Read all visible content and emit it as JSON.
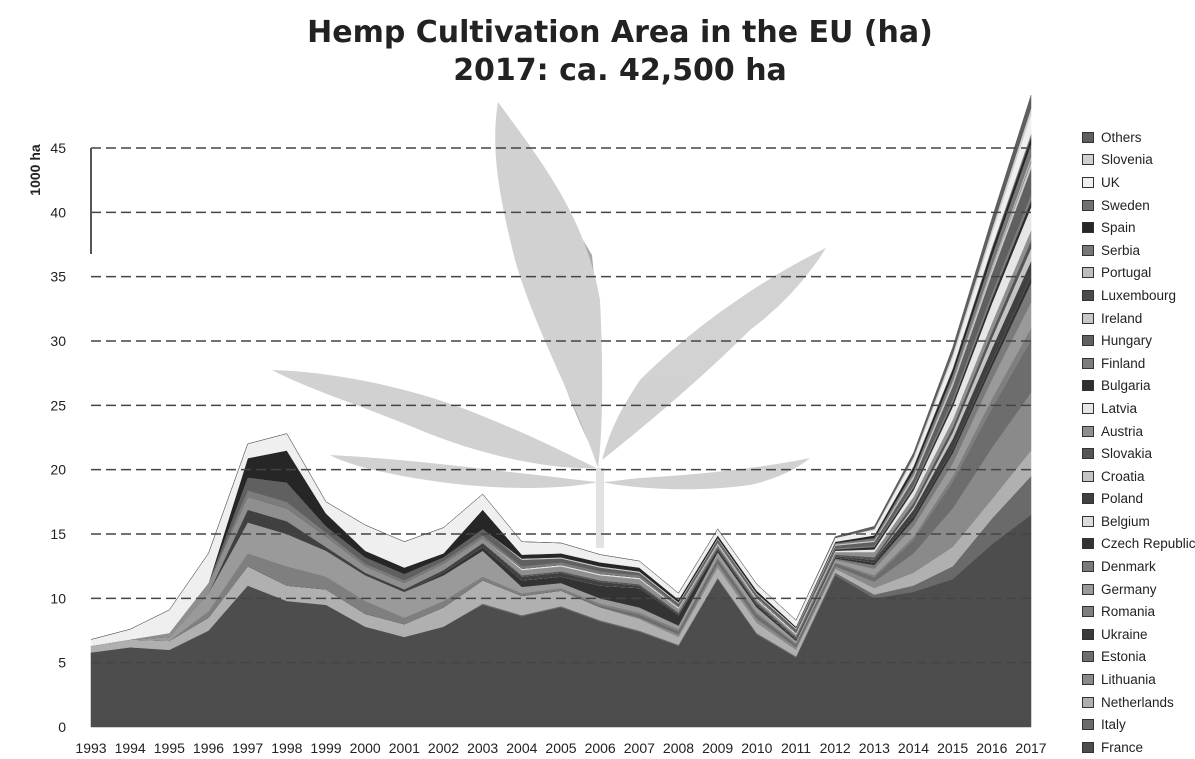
{
  "chart_data": {
    "type": "area",
    "title": "Hemp Cultivation Area in the EU (ha)",
    "subtitle": "2017: ca. 42,500 ha",
    "ylabel": "1000 ha",
    "xlabel": "",
    "ylim": [
      0,
      45
    ],
    "yticks": [
      0,
      5,
      10,
      15,
      20,
      25,
      30,
      35,
      40,
      45
    ],
    "grid": true,
    "legend_position": "right",
    "x": [
      1993,
      1994,
      1995,
      1996,
      1997,
      1998,
      1999,
      2000,
      2001,
      2002,
      2003,
      2004,
      2005,
      2006,
      2007,
      2008,
      2009,
      2010,
      2011,
      2012,
      2013,
      2014,
      2015,
      2016,
      2017
    ],
    "series": [
      {
        "name": "France",
        "color": "#4d4d4d",
        "values": [
          5.8,
          6.2,
          6.0,
          7.5,
          11.0,
          9.8,
          9.5,
          7.8,
          7.0,
          7.8,
          9.5,
          8.6,
          9.3,
          8.2,
          7.4,
          6.3,
          11.5,
          7.2,
          5.4,
          11.8,
          10.0,
          10.5,
          11.5,
          14.2,
          16.5
        ]
      },
      {
        "name": "Italy",
        "color": "#6a6a6a",
        "values": [
          0,
          0,
          0,
          0,
          0,
          0,
          0,
          0,
          0,
          0,
          0.1,
          0.1,
          0.1,
          0.1,
          0.1,
          0.1,
          0.1,
          0.1,
          0.1,
          0.2,
          0.3,
          0.5,
          1.0,
          2.0,
          3.0
        ]
      },
      {
        "name": "Netherlands",
        "color": "#b0b0b0",
        "values": [
          0.5,
          0.6,
          0.7,
          1.0,
          1.5,
          1.2,
          1.2,
          1.0,
          1.0,
          1.5,
          1.8,
          1.5,
          1.2,
          1.0,
          0.9,
          0.6,
          0.8,
          0.8,
          0.5,
          0.3,
          0.5,
          1.0,
          1.5,
          1.5,
          2.0
        ]
      },
      {
        "name": "Lithuania",
        "color": "#8a8a8a",
        "values": [
          0,
          0,
          0,
          0,
          0,
          0,
          0,
          0,
          0,
          0,
          0,
          0,
          0,
          0,
          0.1,
          0.2,
          0.3,
          0.3,
          0.2,
          0.2,
          0.5,
          1.5,
          3.0,
          4.0,
          4.5
        ]
      },
      {
        "name": "Estonia",
        "color": "#6d6d6d",
        "values": [
          0,
          0,
          0,
          0,
          0,
          0,
          0,
          0,
          0,
          0,
          0,
          0,
          0,
          0.1,
          0.2,
          0.2,
          0.3,
          0.3,
          0.2,
          0.2,
          0.3,
          1.0,
          2.0,
          3.0,
          4.0
        ]
      },
      {
        "name": "Ukraine",
        "color": "#3a3a3a",
        "values": [
          0,
          0,
          0,
          0,
          0,
          0,
          0,
          0,
          0,
          0,
          0,
          0,
          0,
          0,
          0,
          0,
          0,
          0,
          0,
          0,
          0,
          0,
          0,
          0,
          0
        ]
      },
      {
        "name": "Romania",
        "color": "#7f7f7f",
        "values": [
          0,
          0,
          0,
          0.5,
          1.0,
          1.5,
          1.0,
          1.0,
          0.5,
          0.5,
          0.3,
          0.2,
          0.2,
          0.2,
          0.2,
          0.2,
          0.2,
          0.2,
          0.1,
          0.1,
          0.2,
          0.3,
          0.5,
          0.8,
          1.0
        ]
      },
      {
        "name": "Germany",
        "color": "#9a9a9a",
        "values": [
          0,
          0,
          0.3,
          1.4,
          2.4,
          2.5,
          2.0,
          2.0,
          2.0,
          2.0,
          2.0,
          0.5,
          0.4,
          0.4,
          0.4,
          0.3,
          0.4,
          0.4,
          0.2,
          0.2,
          0.5,
          0.8,
          1.0,
          1.5,
          2.0
        ]
      },
      {
        "name": "Denmark",
        "color": "#7a7a7a",
        "values": [
          0,
          0,
          0,
          0,
          0,
          0,
          0,
          0,
          0,
          0,
          0,
          0,
          0,
          0,
          0,
          0,
          0,
          0,
          0,
          0.1,
          0.3,
          0.5,
          0.8,
          1.0,
          1.5
        ]
      },
      {
        "name": "Czech Republic",
        "color": "#333333",
        "values": [
          0,
          0,
          0,
          0,
          0,
          0,
          0,
          0,
          0,
          0.2,
          0.3,
          0.5,
          0.5,
          1.0,
          1.5,
          0.8,
          0.2,
          0.2,
          0.1,
          0.1,
          0.2,
          0.3,
          0.3,
          0.4,
          0.5
        ]
      },
      {
        "name": "Belgium",
        "color": "#dcdcdc",
        "values": [
          0,
          0,
          0,
          0,
          0,
          0,
          0,
          0,
          0,
          0,
          0,
          0,
          0,
          0,
          0,
          0,
          0,
          0,
          0,
          0,
          0,
          0,
          0,
          0,
          0
        ]
      },
      {
        "name": "Poland",
        "color": "#404040",
        "values": [
          0,
          0,
          0,
          0,
          1.0,
          1.0,
          0.3,
          0.2,
          0.2,
          0.2,
          0.3,
          0.3,
          0.3,
          0.3,
          0.2,
          0.1,
          0.1,
          0.1,
          0.1,
          0.1,
          0.2,
          0.5,
          0.8,
          1.0,
          1.2
        ]
      },
      {
        "name": "Croatia",
        "color": "#c4c4c4",
        "values": [
          0,
          0,
          0,
          0,
          0,
          0,
          0,
          0,
          0,
          0,
          0,
          0,
          0,
          0,
          0,
          0,
          0,
          0,
          0,
          0,
          0,
          0.2,
          0.5,
          0.8,
          1.0
        ]
      },
      {
        "name": "Slovakia",
        "color": "#555555",
        "values": [
          0,
          0,
          0,
          0,
          0,
          0,
          0,
          0,
          0,
          0,
          0,
          0.1,
          0.1,
          0.1,
          0.1,
          0.1,
          0.1,
          0.1,
          0.1,
          0.1,
          0.2,
          0.3,
          0.4,
          0.5,
          0.6
        ]
      },
      {
        "name": "Austria",
        "color": "#8f8f8f",
        "values": [
          0,
          0,
          0.3,
          0.8,
          1.0,
          1.0,
          0.8,
          0.5,
          0.5,
          0.5,
          0.4,
          0.4,
          0.4,
          0.4,
          0.4,
          0.3,
          0.2,
          0.2,
          0.2,
          0.2,
          0.4,
          0.5,
          0.6,
          0.7,
          0.8
        ]
      },
      {
        "name": "Latvia",
        "color": "#e6e6e6",
        "values": [
          0,
          0,
          0,
          0,
          0,
          0,
          0,
          0,
          0,
          0,
          0,
          0.1,
          0.1,
          0.1,
          0.1,
          0.1,
          0.1,
          0.1,
          0.1,
          0.1,
          0.2,
          0.5,
          1.0,
          1.5,
          1.8
        ]
      },
      {
        "name": "Bulgaria",
        "color": "#2e2e2e",
        "values": [
          0,
          0,
          0,
          0,
          0,
          0,
          0,
          0,
          0,
          0,
          0,
          0,
          0,
          0,
          0,
          0,
          0,
          0,
          0,
          0.1,
          0.2,
          0.2,
          0.3,
          0.4,
          0.5
        ]
      },
      {
        "name": "Finland",
        "color": "#7c7c7c",
        "values": [
          0,
          0,
          0,
          0,
          0.5,
          0.5,
          0.3,
          0.2,
          0.2,
          0.2,
          0.2,
          0.2,
          0.2,
          0.2,
          0.2,
          0.1,
          0.1,
          0.1,
          0.1,
          0.1,
          0.1,
          0.2,
          0.3,
          0.4,
          0.5
        ]
      },
      {
        "name": "Hungary",
        "color": "#606060",
        "values": [
          0,
          0,
          0,
          0,
          1.0,
          1.5,
          0.5,
          0.5,
          0.5,
          0.3,
          0.5,
          0.5,
          0.3,
          0.3,
          0.2,
          0.2,
          0.2,
          0.2,
          0.2,
          0.2,
          0.3,
          0.5,
          1.0,
          1.5,
          2.0
        ]
      },
      {
        "name": "Ireland",
        "color": "#c8c8c8",
        "values": [
          0,
          0,
          0,
          0,
          0,
          0,
          0,
          0,
          0,
          0,
          0,
          0.1,
          0.1,
          0.1,
          0.1,
          0.1,
          0.1,
          0.1,
          0.1,
          0.1,
          0.1,
          0.2,
          0.3,
          0.4,
          0.5
        ]
      },
      {
        "name": "Luxembourg",
        "color": "#4a4a4a",
        "values": [
          0,
          0,
          0,
          0,
          0,
          0,
          0,
          0,
          0,
          0,
          0,
          0,
          0,
          0,
          0,
          0,
          0,
          0,
          0,
          0,
          0,
          0,
          0,
          0,
          0.1
        ]
      },
      {
        "name": "Portugal",
        "color": "#bdbdbd",
        "values": [
          0,
          0,
          0,
          0,
          0,
          0,
          0,
          0,
          0,
          0,
          0,
          0,
          0,
          0,
          0,
          0,
          0,
          0,
          0,
          0,
          0,
          0.1,
          0.1,
          0.2,
          0.3
        ]
      },
      {
        "name": "Serbia",
        "color": "#787878",
        "values": [
          0,
          0,
          0,
          0,
          0,
          0,
          0,
          0,
          0,
          0,
          0,
          0,
          0,
          0,
          0,
          0,
          0,
          0,
          0,
          0.1,
          0.2,
          0.3,
          0.5,
          0.8,
          1.0
        ]
      },
      {
        "name": "Spain",
        "color": "#262626",
        "values": [
          0,
          0,
          0,
          0,
          1.5,
          2.5,
          1.0,
          0.5,
          0.5,
          0.3,
          1.5,
          0.3,
          0.3,
          0.3,
          0.3,
          0.2,
          0.2,
          0.2,
          0.1,
          0.1,
          0.2,
          0.3,
          0.4,
          0.5,
          0.5
        ]
      },
      {
        "name": "Sweden",
        "color": "#717171",
        "values": [
          0,
          0,
          0,
          0,
          0,
          0,
          0,
          0,
          0,
          0,
          0,
          0,
          0,
          0,
          0,
          0,
          0,
          0,
          0,
          0,
          0,
          0.1,
          0.1,
          0.2,
          0.3
        ]
      },
      {
        "name": "UK",
        "color": "#efefef",
        "values": [
          0.5,
          0.8,
          1.8,
          2.3,
          1.1,
          1.3,
          0.9,
          2.0,
          2.0,
          2.0,
          1.2,
          1.0,
          0.8,
          0.6,
          0.5,
          0.5,
          0.5,
          0.5,
          0.5,
          0.3,
          0.4,
          0.5,
          0.8,
          1.0,
          1.5
        ]
      },
      {
        "name": "Slovenia",
        "color": "#cfcfcf",
        "values": [
          0,
          0,
          0,
          0,
          0,
          0,
          0,
          0,
          0,
          0,
          0,
          0,
          0,
          0,
          0,
          0,
          0,
          0,
          0,
          0,
          0.1,
          0.2,
          0.3,
          0.4,
          0.5
        ]
      },
      {
        "name": "Others",
        "color": "#5e5e5e",
        "values": [
          0,
          0,
          0,
          0,
          0,
          0,
          0,
          0,
          0,
          0,
          0,
          0,
          0,
          0,
          0,
          0,
          0,
          0,
          0,
          0.1,
          0.2,
          0.3,
          0.5,
          0.8,
          1.0
        ]
      }
    ]
  }
}
